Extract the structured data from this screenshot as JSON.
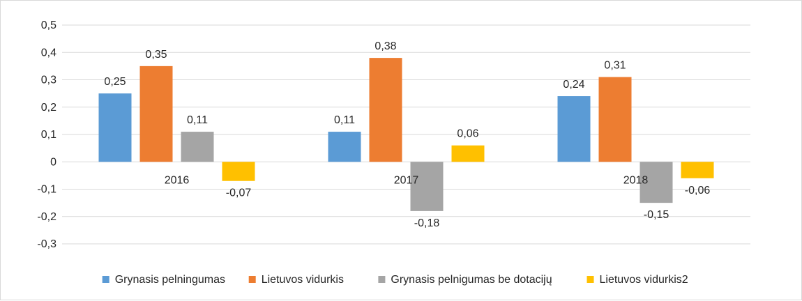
{
  "chart_data": {
    "type": "bar",
    "categories": [
      "2016",
      "2017",
      "2018"
    ],
    "series": [
      {
        "name": "Grynasis pelningumas",
        "color": "#5b9bd5",
        "values": [
          0.25,
          0.11,
          0.24
        ],
        "labels": [
          "0,25",
          "0,11",
          "0,24"
        ]
      },
      {
        "name": "Lietuvos vidurkis",
        "color": "#ed7d31",
        "values": [
          0.35,
          0.38,
          0.31
        ],
        "labels": [
          "0,35",
          "0,38",
          "0,31"
        ]
      },
      {
        "name": "Grynasis pelnigumas be dotacijų",
        "color": "#a5a5a5",
        "values": [
          0.11,
          -0.18,
          -0.15
        ],
        "labels": [
          "0,11",
          "-0,18",
          "-0,15"
        ]
      },
      {
        "name": "Lietuvos vidurkis2",
        "color": "#ffc000",
        "values": [
          -0.07,
          0.06,
          -0.06
        ],
        "labels": [
          "-0,07",
          "0,06",
          "-0,06"
        ]
      }
    ],
    "ylim": [
      -0.3,
      0.5
    ],
    "y_ticks": [
      0.5,
      0.4,
      0.3,
      0.2,
      0.1,
      0,
      -0.1,
      -0.2,
      -0.3
    ],
    "y_tick_labels": [
      "0,5",
      "0,4",
      "0,3",
      "0,2",
      "0,1",
      "0",
      "-0,1",
      "-0,2",
      "-0,3"
    ],
    "grid": true,
    "legend_position": "bottom",
    "title": "",
    "xlabel": "",
    "ylabel": ""
  }
}
